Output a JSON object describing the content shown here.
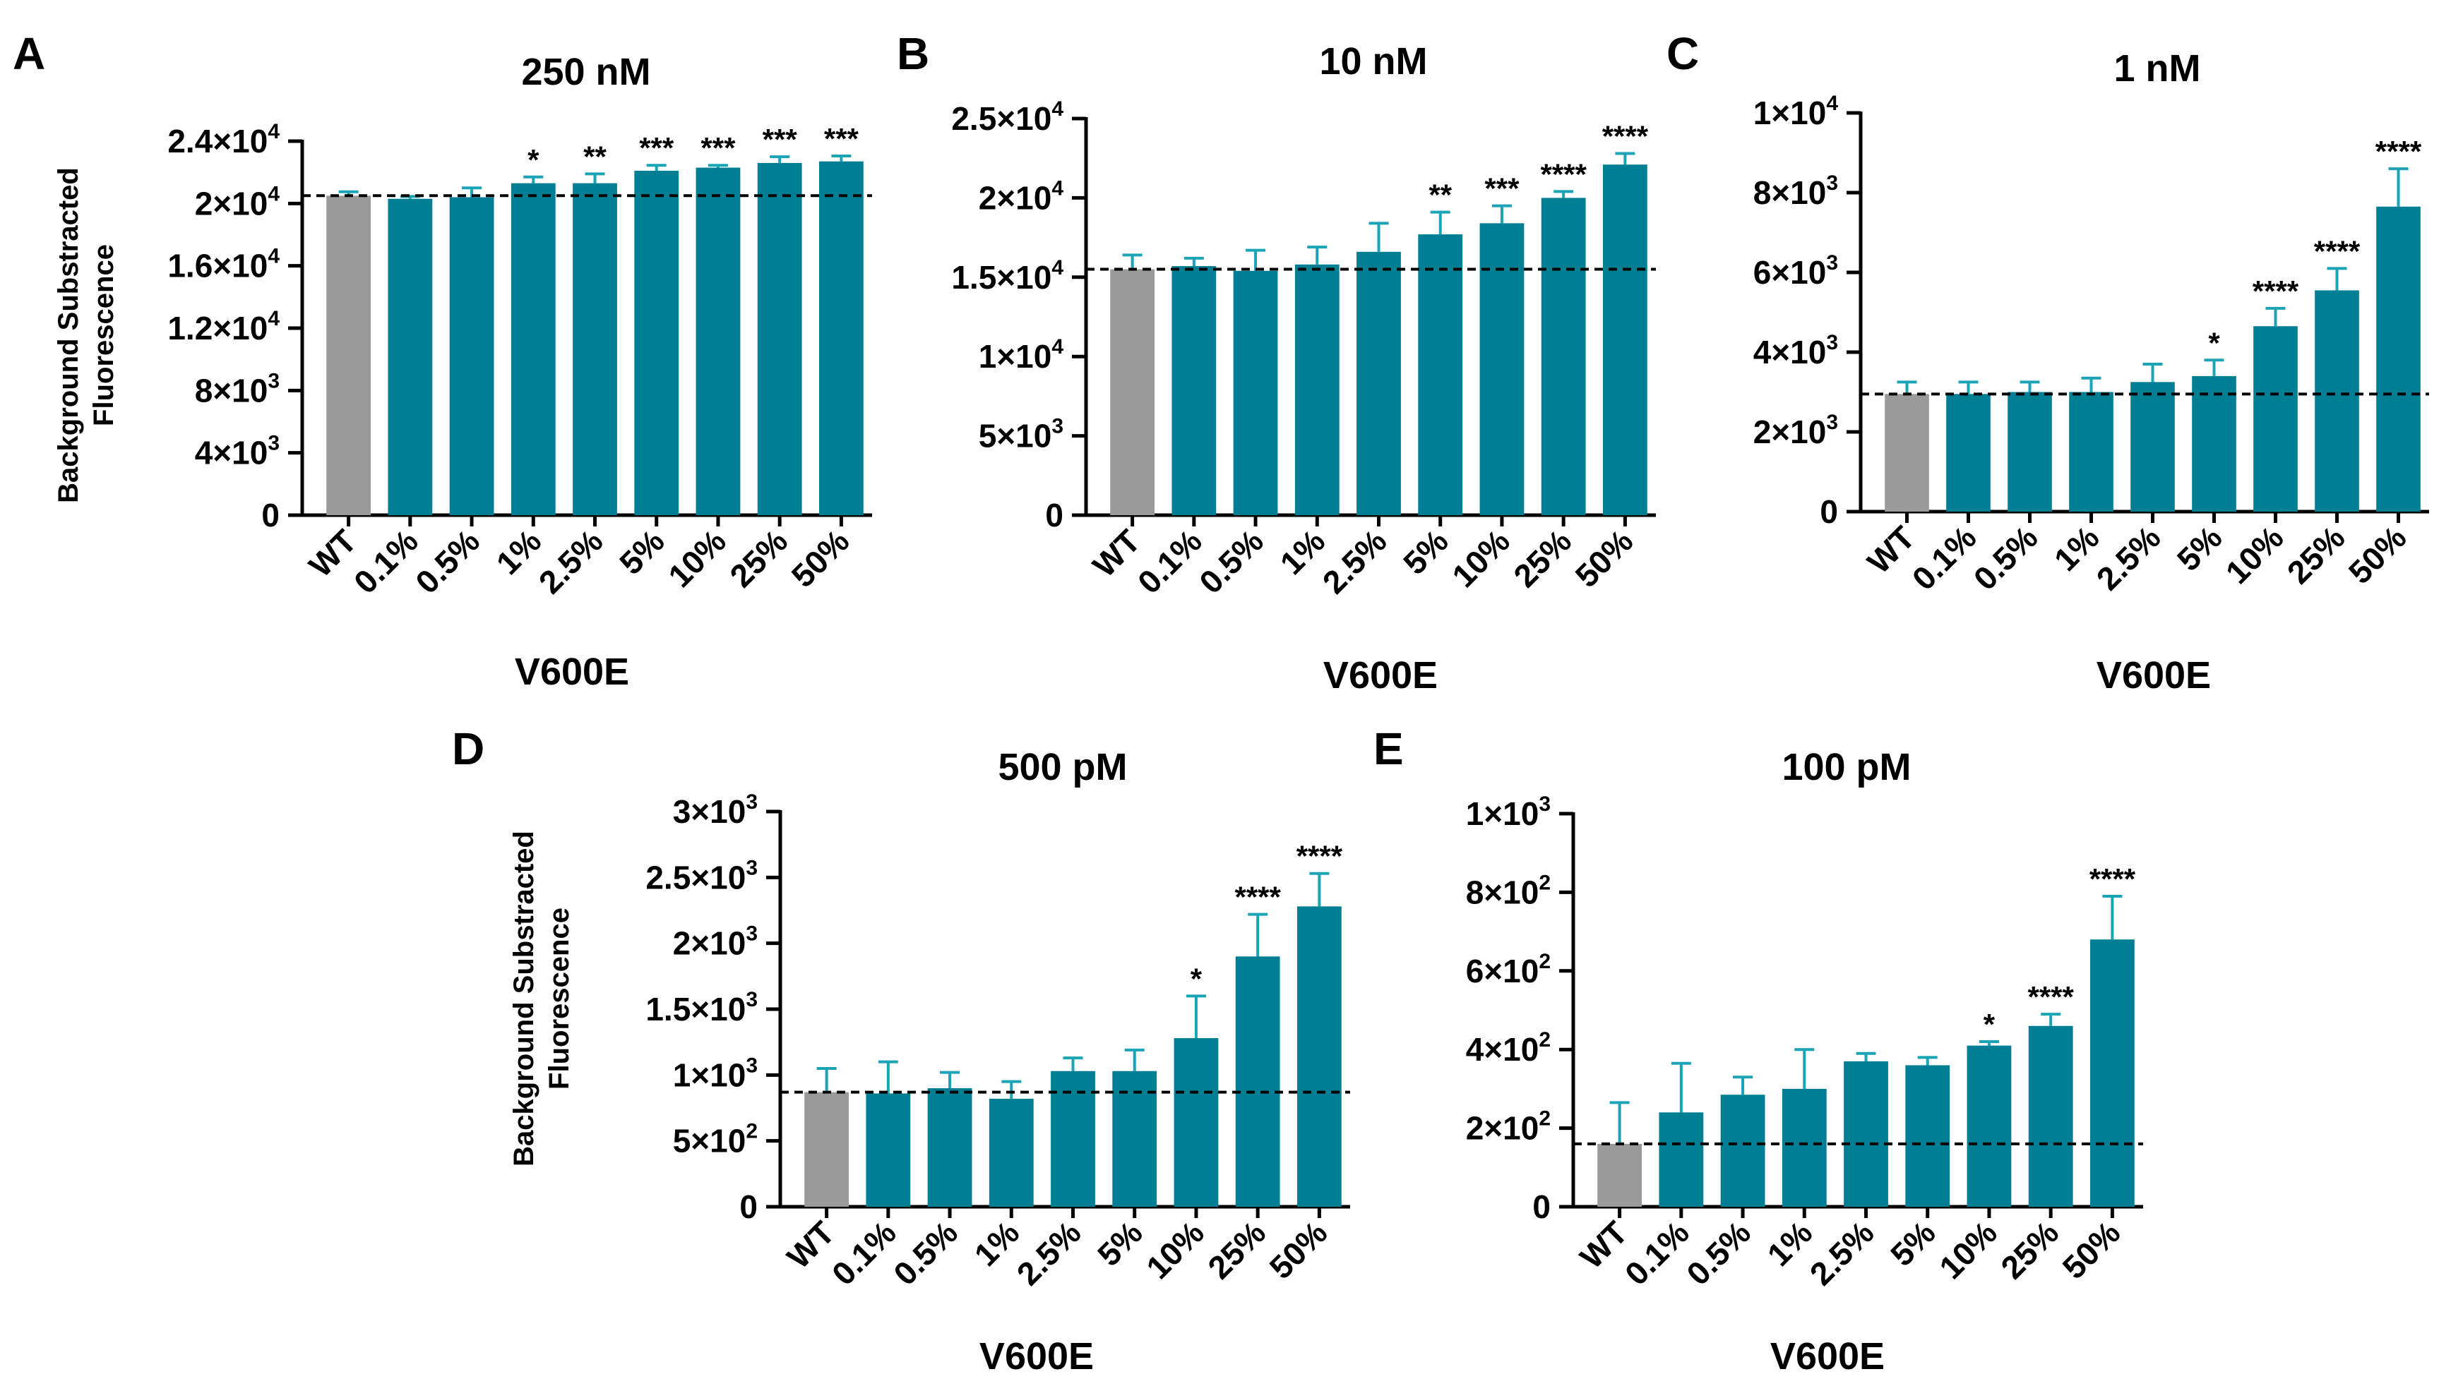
{
  "colors": {
    "wt": "#9a9a9a",
    "mutant": "#007f94",
    "error": "#1ba3b6",
    "axis": "#000000"
  },
  "chart_data": [
    {
      "type": "bar",
      "panel": "A",
      "title": "250 nM",
      "xlabel": "V600E",
      "ylabel": [
        "Background Substracted",
        "Fluorescence"
      ],
      "categories": [
        "WT",
        "0.1%",
        "0.5%",
        "1%",
        "2.5%",
        "5%",
        "10%",
        "25%",
        "50%"
      ],
      "values": [
        20500,
        20300,
        20400,
        21300,
        21300,
        22100,
        22300,
        22600,
        22700
      ],
      "errors": [
        250,
        150,
        600,
        400,
        600,
        350,
        150,
        400,
        350
      ],
      "significance": [
        "",
        "",
        "",
        "*",
        "**",
        "***",
        "***",
        "***",
        "***"
      ],
      "baseline": 20500,
      "ylim": [
        0,
        24000
      ],
      "yticks": [
        0,
        4000,
        8000,
        12000,
        16000,
        20000,
        24000
      ],
      "ytick_labels": [
        [
          "0",
          ""
        ],
        [
          "4×10",
          "3"
        ],
        [
          "8×10",
          "3"
        ],
        [
          "1.2×10",
          "4"
        ],
        [
          "1.6×10",
          "4"
        ],
        [
          "2×10",
          "4"
        ],
        [
          "2.4×10",
          "4"
        ]
      ]
    },
    {
      "type": "bar",
      "panel": "B",
      "title": "10 nM",
      "xlabel": "V600E",
      "categories": [
        "WT",
        "0.1%",
        "0.5%",
        "1%",
        "2.5%",
        "5%",
        "10%",
        "25%",
        "50%"
      ],
      "values": [
        15500,
        15700,
        15400,
        15800,
        16600,
        17700,
        18400,
        20000,
        22100
      ],
      "errors": [
        900,
        500,
        1300,
        1100,
        1800,
        1400,
        1100,
        400,
        700
      ],
      "significance": [
        "",
        "",
        "",
        "",
        "",
        "**",
        "***",
        "****",
        "****"
      ],
      "baseline": 15500,
      "ylim": [
        0,
        25000
      ],
      "yticks": [
        0,
        5000,
        10000,
        15000,
        20000,
        25000
      ],
      "ytick_labels": [
        [
          "0",
          ""
        ],
        [
          "5×10",
          "3"
        ],
        [
          "1×10",
          "4"
        ],
        [
          "1.5×10",
          "4"
        ],
        [
          "2×10",
          "4"
        ],
        [
          "2.5×10",
          "4"
        ]
      ]
    },
    {
      "type": "bar",
      "panel": "C",
      "title": "1 nM",
      "xlabel": "V600E",
      "categories": [
        "WT",
        "0.1%",
        "0.5%",
        "1%",
        "2.5%",
        "5%",
        "10%",
        "25%",
        "50%"
      ],
      "values": [
        2950,
        2950,
        3000,
        3000,
        3250,
        3400,
        4650,
        5550,
        7650
      ],
      "errors": [
        300,
        300,
        250,
        350,
        450,
        400,
        450,
        550,
        950
      ],
      "significance": [
        "",
        "",
        "",
        "",
        "",
        "*",
        "****",
        "****",
        "****"
      ],
      "baseline": 2950,
      "ylim": [
        0,
        10000
      ],
      "yticks": [
        0,
        2000,
        4000,
        6000,
        8000,
        10000
      ],
      "ytick_labels": [
        [
          "0",
          ""
        ],
        [
          "2×10",
          "3"
        ],
        [
          "4×10",
          "3"
        ],
        [
          "6×10",
          "3"
        ],
        [
          "8×10",
          "3"
        ],
        [
          "1×10",
          "4"
        ]
      ]
    },
    {
      "type": "bar",
      "panel": "D",
      "title": "500 pM",
      "xlabel": "V600E",
      "ylabel": [
        "Background Substracted",
        "Fluorescence"
      ],
      "categories": [
        "WT",
        "0.1%",
        "0.5%",
        "1%",
        "2.5%",
        "5%",
        "10%",
        "25%",
        "50%"
      ],
      "values": [
        870,
        860,
        900,
        820,
        1030,
        1030,
        1280,
        1900,
        2280
      ],
      "errors": [
        180,
        240,
        120,
        130,
        100,
        160,
        320,
        320,
        250
      ],
      "significance": [
        "",
        "",
        "",
        "",
        "",
        "",
        "*",
        "****",
        "****"
      ],
      "baseline": 870,
      "ylim": [
        0,
        3000
      ],
      "yticks": [
        0,
        500,
        1000,
        1500,
        2000,
        2500,
        3000
      ],
      "ytick_labels": [
        [
          "0",
          ""
        ],
        [
          "5×10",
          "2"
        ],
        [
          "1×10",
          "3"
        ],
        [
          "1.5×10",
          "3"
        ],
        [
          "2×10",
          "3"
        ],
        [
          "2.5×10",
          "3"
        ],
        [
          "3×10",
          "3"
        ]
      ]
    },
    {
      "type": "bar",
      "panel": "E",
      "title": "100 pM",
      "xlabel": "V600E",
      "categories": [
        "WT",
        "0.1%",
        "0.5%",
        "1%",
        "2.5%",
        "5%",
        "10%",
        "25%",
        "50%"
      ],
      "values": [
        160,
        240,
        285,
        300,
        370,
        360,
        410,
        460,
        680
      ],
      "errors": [
        105,
        125,
        45,
        100,
        20,
        20,
        10,
        30,
        110
      ],
      "significance": [
        "",
        "",
        "",
        "",
        "",
        "",
        "*",
        "****",
        "****"
      ],
      "baseline": 160,
      "ylim": [
        0,
        1000
      ],
      "yticks": [
        0,
        200,
        400,
        600,
        800,
        1000
      ],
      "ytick_labels": [
        [
          "0",
          ""
        ],
        [
          "2×10",
          "2"
        ],
        [
          "4×10",
          "2"
        ],
        [
          "6×10",
          "2"
        ],
        [
          "8×10",
          "2"
        ],
        [
          "1×10",
          "3"
        ]
      ]
    }
  ]
}
